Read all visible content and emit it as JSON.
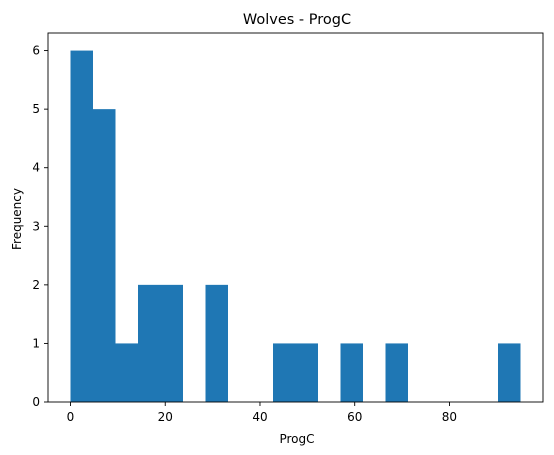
{
  "chart_data": {
    "type": "bar",
    "title": "Wolves - ProgC",
    "xlabel": "ProgC",
    "ylabel": "Frequency",
    "xlim": [
      -4.75,
      99.75
    ],
    "ylim": [
      0,
      6.3
    ],
    "xticks": [
      0,
      20,
      40,
      60,
      80
    ],
    "yticks": [
      0,
      1,
      2,
      3,
      4,
      5,
      6
    ],
    "bar_color": "#1f77b4",
    "grid": false,
    "bins": [
      {
        "x0": 0.0,
        "x1": 4.75,
        "count": 6
      },
      {
        "x0": 4.75,
        "x1": 9.5,
        "count": 5
      },
      {
        "x0": 9.5,
        "x1": 14.25,
        "count": 1
      },
      {
        "x0": 14.25,
        "x1": 19.0,
        "count": 2
      },
      {
        "x0": 19.0,
        "x1": 23.75,
        "count": 2
      },
      {
        "x0": 23.75,
        "x1": 28.5,
        "count": 0
      },
      {
        "x0": 28.5,
        "x1": 33.25,
        "count": 2
      },
      {
        "x0": 33.25,
        "x1": 38.0,
        "count": 0
      },
      {
        "x0": 38.0,
        "x1": 42.75,
        "count": 0
      },
      {
        "x0": 42.75,
        "x1": 47.5,
        "count": 1
      },
      {
        "x0": 47.5,
        "x1": 52.25,
        "count": 1
      },
      {
        "x0": 52.25,
        "x1": 57.0,
        "count": 0
      },
      {
        "x0": 57.0,
        "x1": 61.75,
        "count": 1
      },
      {
        "x0": 61.75,
        "x1": 66.5,
        "count": 0
      },
      {
        "x0": 66.5,
        "x1": 71.25,
        "count": 1
      },
      {
        "x0": 71.25,
        "x1": 76.0,
        "count": 0
      },
      {
        "x0": 76.0,
        "x1": 80.75,
        "count": 0
      },
      {
        "x0": 80.75,
        "x1": 85.5,
        "count": 0
      },
      {
        "x0": 85.5,
        "x1": 90.25,
        "count": 0
      },
      {
        "x0": 90.25,
        "x1": 95.0,
        "count": 1
      }
    ]
  }
}
